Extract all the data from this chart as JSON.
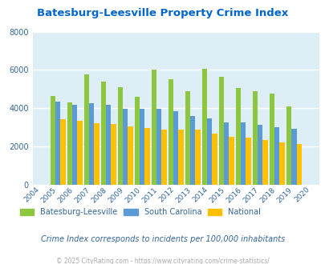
{
  "title": "Batesburg-Leesville Property Crime Index",
  "years": [
    2004,
    2005,
    2006,
    2007,
    2008,
    2009,
    2010,
    2011,
    2012,
    2013,
    2014,
    2015,
    2016,
    2017,
    2018,
    2019,
    2020
  ],
  "batesburg": [
    null,
    4650,
    4300,
    5750,
    5400,
    5100,
    4600,
    6000,
    5500,
    4900,
    6050,
    5650,
    5050,
    4900,
    4750,
    4100,
    null
  ],
  "south_carolina": [
    null,
    4350,
    4200,
    4250,
    4200,
    3950,
    3950,
    3980,
    3850,
    3600,
    3450,
    3280,
    3250,
    3150,
    3030,
    2940,
    null
  ],
  "national": [
    null,
    3420,
    3330,
    3230,
    3180,
    3050,
    2950,
    2880,
    2880,
    2870,
    2680,
    2500,
    2470,
    2360,
    2230,
    2120,
    null
  ],
  "color_batesburg": "#8dc63f",
  "color_sc": "#5b9bd5",
  "color_national": "#ffc000",
  "bg_color": "#deeef6",
  "tick_color": "#336699",
  "title_color": "#0066cc",
  "legend_text_color": "#336699",
  "subtitle_text": "Crime Index corresponds to incidents per 100,000 inhabitants",
  "footer_text": "© 2025 CityRating.com - https://www.cityrating.com/crime-statistics/",
  "ylim": [
    0,
    8000
  ],
  "yticks": [
    0,
    2000,
    4000,
    6000,
    8000
  ]
}
